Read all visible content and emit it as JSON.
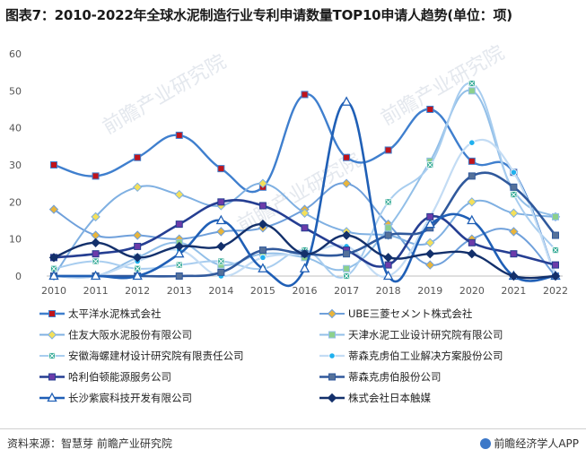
{
  "title": "图表7：2010-2022年全球水泥制造行业专利申请数量TOP10申请人趋势(单位：项)",
  "source": "资料来源：智慧芽 前瞻产业研究院",
  "brand": "前瞻经济学人APP",
  "watermark": "前瞻产业研究院",
  "chart_data": {
    "type": "line",
    "ylim": [
      0,
      60
    ],
    "yticks": [
      0,
      10,
      20,
      30,
      40,
      50,
      60
    ],
    "x": [
      "2010",
      "2011",
      "2012",
      "2013",
      "2014",
      "2015",
      "2016",
      "2017",
      "2018",
      "2019",
      "2020",
      "2021",
      "2022"
    ],
    "legend_position": "bottom",
    "series": [
      {
        "name": "太平洋水泥株式会社",
        "color": "#3f7fce",
        "marker": "square",
        "marker_color": "#c0141b",
        "width": 2.4,
        "values": [
          30,
          27,
          32,
          38,
          29,
          24,
          49,
          32,
          34,
          45,
          31,
          28,
          0
        ]
      },
      {
        "name": "UBE三菱セメント株式会社",
        "color": "#6fa0db",
        "marker": "diamond",
        "marker_color": "#e9b53c",
        "width": 2,
        "values": [
          18,
          11,
          11,
          10,
          12,
          13,
          18,
          25,
          14,
          3,
          10,
          12,
          0
        ]
      },
      {
        "name": "住友大阪水泥股份有限公司",
        "color": "#7fb0e2",
        "marker": "diamond",
        "marker_color": "#f4e05a",
        "width": 2,
        "values": [
          0,
          16,
          24,
          22,
          19,
          25,
          17,
          12,
          11,
          9,
          20,
          17,
          16
        ]
      },
      {
        "name": "天津水泥工业设计研究院有限公司",
        "color": "#92bfe8",
        "marker": "square",
        "marker_color": "#8cd08c",
        "width": 2,
        "values": [
          0,
          0,
          5,
          9,
          3,
          6,
          5,
          2,
          13,
          31,
          50,
          23,
          16
        ]
      },
      {
        "name": "安徽海螺建材设计研究院有限责任公司",
        "color": "#a8cdef",
        "marker": "asterisk",
        "marker_color": "#2fa893",
        "width": 2,
        "values": [
          2,
          4,
          2,
          3,
          4,
          2,
          7,
          0,
          20,
          30,
          52,
          22,
          7
        ]
      },
      {
        "name": "蒂森克虏伯工业解决方案股份公司",
        "color": "#c3dcf4",
        "marker": "circle",
        "marker_color": "#1fb0ee",
        "width": 2.2,
        "values": [
          0,
          0,
          4,
          7,
          0,
          5,
          6,
          8,
          0,
          16,
          36,
          28,
          0
        ]
      },
      {
        "name": "哈利伯顿能源服务公司",
        "color": "#253e92",
        "marker": "square",
        "marker_color": "#6c3ba9",
        "width": 2.6,
        "values": [
          5,
          6,
          8,
          14,
          20,
          19,
          13,
          7,
          3,
          16,
          9,
          6,
          3
        ]
      },
      {
        "name": "蒂森克虏伯股份公司",
        "color": "#30599c",
        "marker": "square",
        "marker_color": "#55719a",
        "width": 2.6,
        "values": [
          0,
          0,
          0,
          0,
          1,
          7,
          6,
          6,
          11,
          13,
          27,
          24,
          11
        ]
      },
      {
        "name": "长沙紫宸科技开发有限公司",
        "color": "#1f5fb6",
        "marker": "triangle",
        "marker_color": "#ffffff",
        "width": 2.6,
        "values": [
          0,
          0,
          0,
          6,
          15,
          2,
          2,
          47,
          0,
          14,
          15,
          0,
          0
        ]
      },
      {
        "name": "株式会社日本触媒",
        "color": "#13306b",
        "marker": "diamond",
        "marker_color": "#13306b",
        "width": 2.4,
        "values": [
          5,
          9,
          5,
          8,
          8,
          14,
          6,
          11,
          5,
          6,
          6,
          0,
          0
        ]
      }
    ]
  }
}
